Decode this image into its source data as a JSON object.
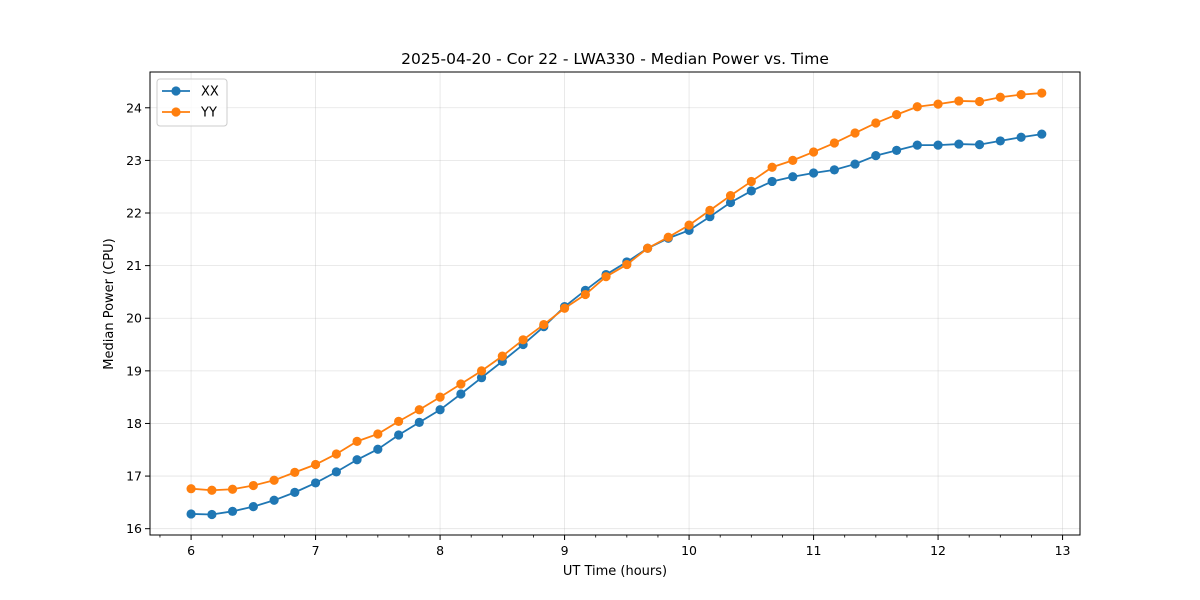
{
  "chart_data": {
    "type": "line",
    "title": "2025-04-20 - Cor 22 - LWA330 - Median Power vs. Time",
    "xlabel": "UT Time (hours)",
    "ylabel": "Median Power (CPU)",
    "xlim": [
      5.67,
      13.14
    ],
    "ylim": [
      15.88,
      24.68
    ],
    "xticks": [
      6,
      7,
      8,
      9,
      10,
      11,
      12,
      13
    ],
    "xtick_labels": [
      "6",
      "7",
      "8",
      "9",
      "10",
      "11",
      "12",
      "13"
    ],
    "yticks": [
      16,
      17,
      18,
      19,
      20,
      21,
      22,
      23,
      24
    ],
    "ytick_labels": [
      "16",
      "17",
      "18",
      "19",
      "20",
      "21",
      "22",
      "23",
      "24"
    ],
    "grid": true,
    "legend_position": "top-left",
    "x": [
      6.0,
      6.167,
      6.333,
      6.5,
      6.667,
      6.833,
      7.0,
      7.167,
      7.333,
      7.5,
      7.667,
      7.833,
      8.0,
      8.167,
      8.333,
      8.5,
      8.667,
      8.833,
      9.0,
      9.167,
      9.333,
      9.5,
      9.667,
      9.833,
      10.0,
      10.167,
      10.333,
      10.5,
      10.667,
      10.833,
      11.0,
      11.167,
      11.333,
      11.5,
      11.667,
      11.833,
      12.0,
      12.167,
      12.333,
      12.5,
      12.667,
      12.833
    ],
    "series": [
      {
        "name": "XX",
        "color": "#1f77b4",
        "values": [
          16.28,
          16.27,
          16.33,
          16.42,
          16.54,
          16.69,
          16.87,
          17.08,
          17.31,
          17.51,
          17.78,
          18.02,
          18.26,
          18.56,
          18.87,
          19.18,
          19.5,
          19.84,
          20.22,
          20.53,
          20.83,
          21.07,
          21.33,
          21.52,
          21.67,
          21.93,
          22.2,
          22.42,
          22.6,
          22.69,
          22.76,
          22.82,
          22.93,
          23.09,
          23.19,
          23.29,
          23.29,
          23.31,
          23.3,
          23.37,
          23.44,
          23.5
        ]
      },
      {
        "name": "YY",
        "color": "#ff7f0e",
        "values": [
          16.76,
          16.73,
          16.75,
          16.82,
          16.92,
          17.07,
          17.22,
          17.42,
          17.66,
          17.8,
          18.04,
          18.26,
          18.5,
          18.75,
          19.0,
          19.28,
          19.59,
          19.88,
          20.19,
          20.45,
          20.79,
          21.02,
          21.33,
          21.54,
          21.77,
          22.05,
          22.33,
          22.6,
          22.87,
          23.0,
          23.16,
          23.33,
          23.52,
          23.71,
          23.87,
          24.02,
          24.07,
          24.13,
          24.12,
          24.2,
          24.25,
          24.28
        ]
      }
    ]
  }
}
